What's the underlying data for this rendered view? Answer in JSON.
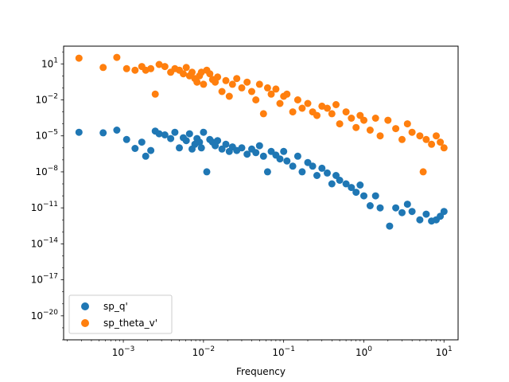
{
  "chart_data": {
    "type": "scatter",
    "title": "",
    "xlabel": "Frequency",
    "ylabel": "",
    "x_scale": "log",
    "y_scale": "log",
    "xlim": [
      0.00018,
      15
    ],
    "ylim": [
      1e-22,
      300
    ],
    "grid": false,
    "legend_position": "lower-left",
    "x_ticks": [
      {
        "value": 0.001,
        "base": "10",
        "exp": "−3"
      },
      {
        "value": 0.01,
        "base": "10",
        "exp": "−2"
      },
      {
        "value": 0.1,
        "base": "10",
        "exp": "−1"
      },
      {
        "value": 1,
        "base": "10",
        "exp": "0"
      },
      {
        "value": 10,
        "base": "10",
        "exp": "1"
      }
    ],
    "y_ticks": [
      {
        "value": 1e-20,
        "base": "10",
        "exp": "−20"
      },
      {
        "value": 1e-17,
        "base": "10",
        "exp": "−17"
      },
      {
        "value": 1e-14,
        "base": "10",
        "exp": "−14"
      },
      {
        "value": 1e-11,
        "base": "10",
        "exp": "−11"
      },
      {
        "value": 1e-08,
        "base": "10",
        "exp": "−8"
      },
      {
        "value": 1e-05,
        "base": "10",
        "exp": "−5"
      },
      {
        "value": 0.01,
        "base": "10",
        "exp": "−2"
      },
      {
        "value": 10,
        "base": "10",
        "exp": "1"
      }
    ],
    "series": [
      {
        "name": "sp_q'",
        "color": "#1f77b4",
        "x": [
          0.00028,
          0.00056,
          0.00083,
          0.0011,
          0.0014,
          0.0017,
          0.0019,
          0.0022,
          0.0025,
          0.0028,
          0.0033,
          0.0039,
          0.0044,
          0.005,
          0.0056,
          0.0061,
          0.0067,
          0.0072,
          0.0078,
          0.0083,
          0.0089,
          0.0094,
          0.01,
          0.011,
          0.012,
          0.013,
          0.014,
          0.015,
          0.017,
          0.019,
          0.021,
          0.023,
          0.026,
          0.03,
          0.035,
          0.04,
          0.045,
          0.05,
          0.056,
          0.063,
          0.07,
          0.08,
          0.09,
          0.1,
          0.11,
          0.13,
          0.15,
          0.17,
          0.2,
          0.23,
          0.26,
          0.3,
          0.35,
          0.4,
          0.45,
          0.5,
          0.6,
          0.7,
          0.8,
          0.9,
          1.0,
          1.2,
          1.4,
          1.6,
          2.1,
          2.5,
          3.0,
          3.5,
          4.0,
          5.0,
          6.0,
          7.0,
          8.0,
          9.0,
          10.0
        ],
        "y": [
          2e-05,
          1.8e-05,
          3e-05,
          5e-06,
          9e-07,
          3e-06,
          2e-07,
          6e-07,
          2.5e-05,
          1.5e-05,
          1.2e-05,
          6e-06,
          2e-05,
          1e-06,
          7e-06,
          4e-06,
          1.5e-05,
          8e-07,
          2e-06,
          6e-06,
          3e-06,
          1e-06,
          2e-05,
          1e-08,
          5e-06,
          3e-06,
          1.5e-06,
          4e-06,
          8e-07,
          2e-06,
          5e-07,
          1.2e-06,
          6e-07,
          1e-06,
          3e-07,
          8e-07,
          4e-07,
          1.5e-06,
          2e-07,
          1e-08,
          5e-07,
          2.5e-07,
          1.2e-07,
          5e-07,
          8e-08,
          3e-08,
          2e-07,
          1e-08,
          6e-08,
          3e-08,
          5e-09,
          2e-08,
          8e-09,
          1e-09,
          5e-09,
          2e-09,
          1e-09,
          5e-10,
          2e-10,
          8e-10,
          1e-10,
          1.5e-11,
          1e-10,
          1e-11,
          3e-13,
          1e-11,
          4e-12,
          2e-11,
          5e-12,
          1e-12,
          3e-12,
          8e-13,
          1e-12,
          2e-12,
          5e-12
        ]
      },
      {
        "name": "sp_theta_v'",
        "color": "#ff7f0e",
        "x": [
          0.00028,
          0.00056,
          0.00083,
          0.0011,
          0.0014,
          0.0017,
          0.0019,
          0.0022,
          0.0025,
          0.0028,
          0.0033,
          0.0039,
          0.0044,
          0.005,
          0.0056,
          0.0061,
          0.0067,
          0.0072,
          0.0078,
          0.0083,
          0.0089,
          0.0094,
          0.01,
          0.011,
          0.012,
          0.013,
          0.014,
          0.015,
          0.017,
          0.019,
          0.021,
          0.023,
          0.026,
          0.03,
          0.035,
          0.04,
          0.045,
          0.05,
          0.056,
          0.063,
          0.07,
          0.08,
          0.09,
          0.1,
          0.11,
          0.13,
          0.15,
          0.17,
          0.2,
          0.23,
          0.26,
          0.3,
          0.35,
          0.4,
          0.45,
          0.5,
          0.6,
          0.7,
          0.8,
          0.9,
          1.0,
          1.2,
          1.4,
          1.6,
          2.0,
          2.5,
          3.0,
          3.5,
          4.0,
          5.0,
          5.5,
          6.0,
          7.0,
          8.0,
          9.0,
          10.0
        ],
        "y": [
          30,
          5,
          35,
          4,
          3,
          6,
          3,
          4,
          0.03,
          9,
          6,
          2,
          4,
          3,
          1.5,
          5,
          1,
          2,
          0.6,
          0.3,
          1,
          2,
          0.2,
          3,
          1.5,
          0.5,
          0.3,
          0.8,
          0.05,
          0.4,
          0.02,
          0.2,
          0.6,
          0.1,
          0.3,
          0.05,
          0.01,
          0.2,
          0.0007,
          0.1,
          0.03,
          0.08,
          0.005,
          0.02,
          0.03,
          0.001,
          0.01,
          0.002,
          0.005,
          0.001,
          0.0005,
          0.003,
          0.002,
          0.0007,
          0.004,
          0.0001,
          0.001,
          0.0003,
          5e-05,
          0.0005,
          0.0002,
          3e-05,
          0.0003,
          1e-05,
          0.0002,
          4e-05,
          5e-06,
          0.0001,
          2e-05,
          1e-05,
          1e-08,
          5e-06,
          2e-06,
          1e-05,
          3e-06,
          1e-06
        ]
      }
    ]
  }
}
